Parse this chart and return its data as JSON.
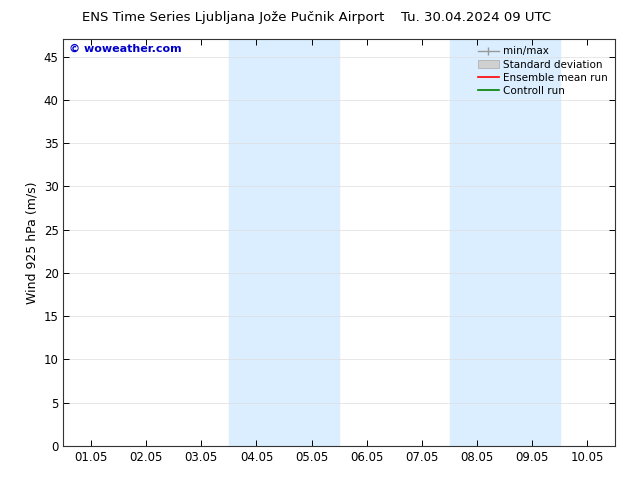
{
  "title_left": "ENS Time Series Ljubljana Jože Pučnik Airport",
  "title_right": "Tu. 30.04.2024 09 UTC",
  "ylabel": "Wind 925 hPa (m/s)",
  "watermark": "© woweather.com",
  "xlim": [
    0.5,
    10.5
  ],
  "ylim": [
    0,
    47
  ],
  "xtick_labels": [
    "01.05",
    "02.05",
    "03.05",
    "04.05",
    "05.05",
    "06.05",
    "07.05",
    "08.05",
    "09.05",
    "10.05"
  ],
  "xtick_positions": [
    1,
    2,
    3,
    4,
    5,
    6,
    7,
    8,
    9,
    10
  ],
  "ytick_positions": [
    0,
    5,
    10,
    15,
    20,
    25,
    30,
    35,
    40,
    45
  ],
  "shaded_regions": [
    {
      "xmin": 3.5,
      "xmax": 5.5,
      "color": "#daeeff"
    },
    {
      "xmin": 7.5,
      "xmax": 9.5,
      "color": "#daeeff"
    }
  ],
  "background_color": "#ffffff",
  "plot_bg_color": "#ffffff",
  "legend_entries": [
    {
      "label": "min/max",
      "color": "#aaaaaa",
      "style": "minmax"
    },
    {
      "label": "Standard deviation",
      "color": "#cccccc",
      "style": "stddev"
    },
    {
      "label": "Ensemble mean run",
      "color": "#ff0000",
      "style": "line"
    },
    {
      "label": "Controll run",
      "color": "#008000",
      "style": "line"
    }
  ],
  "watermark_color": "#0000cc",
  "title_fontsize": 9.5,
  "axis_fontsize": 9,
  "tick_fontsize": 8.5,
  "legend_fontsize": 7.5
}
